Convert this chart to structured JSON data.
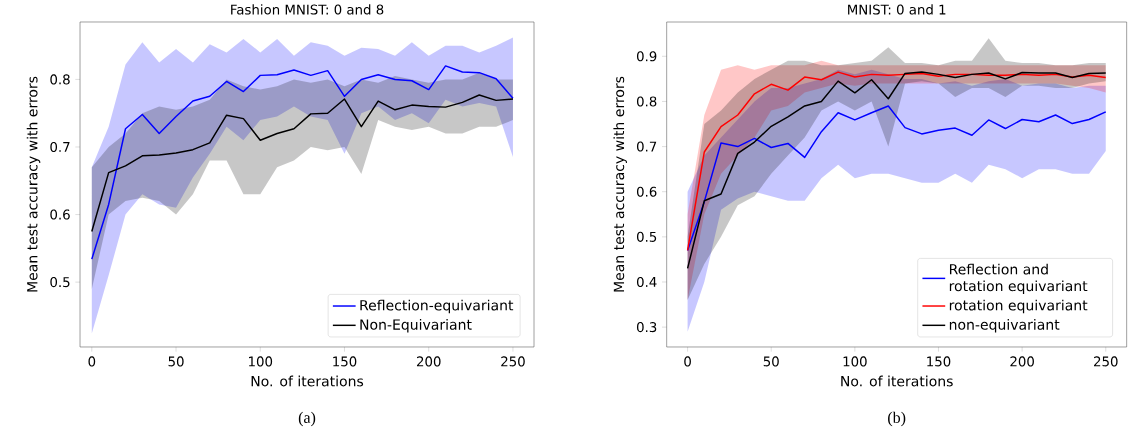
{
  "chart_data": [
    {
      "type": "line",
      "title": "Fashion MNIST: 0 and 8",
      "xlabel": "No. of iterations",
      "ylabel": "Mean test accuracy with errors",
      "annotations": [
        "(a)"
      ],
      "x": [
        0,
        10,
        20,
        30,
        40,
        50,
        60,
        70,
        80,
        90,
        100,
        110,
        120,
        130,
        140,
        150,
        160,
        170,
        180,
        190,
        200,
        210,
        220,
        230,
        240,
        250
      ],
      "series": [
        {
          "name": "Reflection-equivariant",
          "color": "#0000ff",
          "values": [
            0.534,
            0.615,
            0.727,
            0.748,
            0.72,
            0.745,
            0.768,
            0.775,
            0.797,
            0.782,
            0.806,
            0.807,
            0.814,
            0.806,
            0.813,
            0.775,
            0.8,
            0.807,
            0.8,
            0.798,
            0.785,
            0.82,
            0.811,
            0.81,
            0.801,
            0.772
          ],
          "upper": [
            0.67,
            0.73,
            0.822,
            0.855,
            0.825,
            0.845,
            0.825,
            0.852,
            0.84,
            0.86,
            0.84,
            0.86,
            0.835,
            0.855,
            0.85,
            0.835,
            0.847,
            0.845,
            0.835,
            0.855,
            0.835,
            0.85,
            0.85,
            0.84,
            0.85,
            0.862
          ],
          "lower": [
            0.424,
            0.51,
            0.6,
            0.63,
            0.615,
            0.61,
            0.655,
            0.69,
            0.73,
            0.71,
            0.74,
            0.745,
            0.76,
            0.745,
            0.74,
            0.69,
            0.75,
            0.76,
            0.74,
            0.75,
            0.735,
            0.77,
            0.76,
            0.765,
            0.76,
            0.685
          ]
        },
        {
          "name": "Non-Equivariant",
          "color": "#000000",
          "values": [
            0.575,
            0.662,
            0.672,
            0.687,
            0.688,
            0.691,
            0.696,
            0.706,
            0.747,
            0.742,
            0.71,
            0.72,
            0.727,
            0.749,
            0.75,
            0.771,
            0.73,
            0.768,
            0.755,
            0.762,
            0.76,
            0.759,
            0.766,
            0.777,
            0.769,
            0.771
          ],
          "upper": [
            0.67,
            0.7,
            0.72,
            0.75,
            0.76,
            0.755,
            0.76,
            0.77,
            0.8,
            0.79,
            0.785,
            0.79,
            0.8,
            0.795,
            0.8,
            0.79,
            0.8,
            0.795,
            0.805,
            0.8,
            0.795,
            0.8,
            0.8,
            0.81,
            0.8,
            0.8
          ],
          "lower": [
            0.49,
            0.6,
            0.62,
            0.625,
            0.62,
            0.6,
            0.63,
            0.68,
            0.68,
            0.63,
            0.63,
            0.67,
            0.68,
            0.7,
            0.695,
            0.7,
            0.66,
            0.74,
            0.73,
            0.725,
            0.73,
            0.72,
            0.72,
            0.73,
            0.73,
            0.74
          ]
        }
      ],
      "xlim": [
        -7,
        262.5
      ],
      "ylim": [
        0.404,
        0.885
      ],
      "xticks": [
        0,
        50,
        100,
        150,
        200,
        250
      ],
      "yticks": [
        0.5,
        0.6,
        0.7,
        0.8
      ],
      "legend": "bottom right",
      "grid": false,
      "marker": "none",
      "line_style": "solid"
    },
    {
      "type": "line",
      "title": "MNIST: 0 and 1",
      "xlabel": "No. of iterations",
      "ylabel": "Mean test accuracy with errors",
      "annotations": [
        "(b)"
      ],
      "x": [
        0,
        10,
        20,
        30,
        40,
        50,
        60,
        70,
        80,
        90,
        100,
        110,
        120,
        130,
        140,
        150,
        160,
        170,
        180,
        190,
        200,
        210,
        220,
        230,
        240,
        250
      ],
      "series": [
        {
          "name": "Reflection and rotation equivariant",
          "color": "#0000ff",
          "values": [
            0.47,
            0.578,
            0.708,
            0.7,
            0.718,
            0.698,
            0.707,
            0.676,
            0.733,
            0.775,
            0.759,
            0.775,
            0.79,
            0.742,
            0.728,
            0.736,
            0.741,
            0.725,
            0.759,
            0.74,
            0.76,
            0.755,
            0.77,
            0.751,
            0.76,
            0.777
          ],
          "upper": [
            0.6,
            0.68,
            0.72,
            0.76,
            0.8,
            0.83,
            0.83,
            0.84,
            0.85,
            0.87,
            0.86,
            0.87,
            0.86,
            0.85,
            0.85,
            0.84,
            0.845,
            0.835,
            0.845,
            0.85,
            0.835,
            0.84,
            0.84,
            0.83,
            0.835,
            0.835
          ],
          "lower": [
            0.29,
            0.4,
            0.56,
            0.585,
            0.6,
            0.59,
            0.58,
            0.58,
            0.63,
            0.66,
            0.63,
            0.64,
            0.64,
            0.63,
            0.62,
            0.62,
            0.64,
            0.62,
            0.66,
            0.65,
            0.63,
            0.65,
            0.65,
            0.64,
            0.64,
            0.69
          ]
        },
        {
          "name": "rotation equivariant",
          "color": "#ff0000",
          "values": [
            0.47,
            0.688,
            0.744,
            0.77,
            0.817,
            0.838,
            0.825,
            0.854,
            0.848,
            0.865,
            0.854,
            0.86,
            0.858,
            0.86,
            0.862,
            0.856,
            0.86,
            0.86,
            0.858,
            0.858,
            0.86,
            0.858,
            0.86,
            0.854,
            0.858,
            0.853
          ],
          "upper": [
            0.55,
            0.77,
            0.87,
            0.88,
            0.87,
            0.88,
            0.88,
            0.88,
            0.89,
            0.88,
            0.88,
            0.88,
            0.88,
            0.88,
            0.88,
            0.88,
            0.88,
            0.88,
            0.88,
            0.88,
            0.88,
            0.88,
            0.88,
            0.88,
            0.88,
            0.88
          ],
          "lower": [
            0.36,
            0.55,
            0.64,
            0.68,
            0.72,
            0.78,
            0.79,
            0.82,
            0.83,
            0.84,
            0.835,
            0.84,
            0.84,
            0.84,
            0.84,
            0.84,
            0.84,
            0.84,
            0.84,
            0.84,
            0.84,
            0.84,
            0.84,
            0.835,
            0.83,
            0.82
          ]
        },
        {
          "name": "non-equivariant",
          "color": "#000000",
          "values": [
            0.43,
            0.58,
            0.595,
            0.685,
            0.71,
            0.745,
            0.766,
            0.79,
            0.8,
            0.845,
            0.819,
            0.848,
            0.806,
            0.862,
            0.865,
            0.86,
            0.853,
            0.86,
            0.863,
            0.85,
            0.864,
            0.863,
            0.863,
            0.853,
            0.862,
            0.863
          ],
          "upper": [
            0.5,
            0.75,
            0.78,
            0.82,
            0.85,
            0.87,
            0.89,
            0.89,
            0.88,
            0.88,
            0.885,
            0.89,
            0.92,
            0.885,
            0.885,
            0.88,
            0.89,
            0.89,
            0.94,
            0.89,
            0.885,
            0.885,
            0.88,
            0.88,
            0.885,
            0.885
          ],
          "lower": [
            0.36,
            0.44,
            0.5,
            0.57,
            0.59,
            0.64,
            0.68,
            0.72,
            0.78,
            0.8,
            0.78,
            0.8,
            0.7,
            0.84,
            0.845,
            0.84,
            0.81,
            0.83,
            0.83,
            0.81,
            0.835,
            0.835,
            0.83,
            0.83,
            0.84,
            0.845
          ]
        }
      ],
      "xlim": [
        -12.5,
        262.5
      ],
      "ylim": [
        0.256,
        0.976
      ],
      "xticks": [
        0,
        50,
        100,
        150,
        200,
        250
      ],
      "yticks": [
        0.3,
        0.4,
        0.5,
        0.6,
        0.7,
        0.8,
        0.9
      ],
      "legend": "bottom right",
      "grid": false,
      "marker": "none",
      "line_style": "solid"
    }
  ]
}
